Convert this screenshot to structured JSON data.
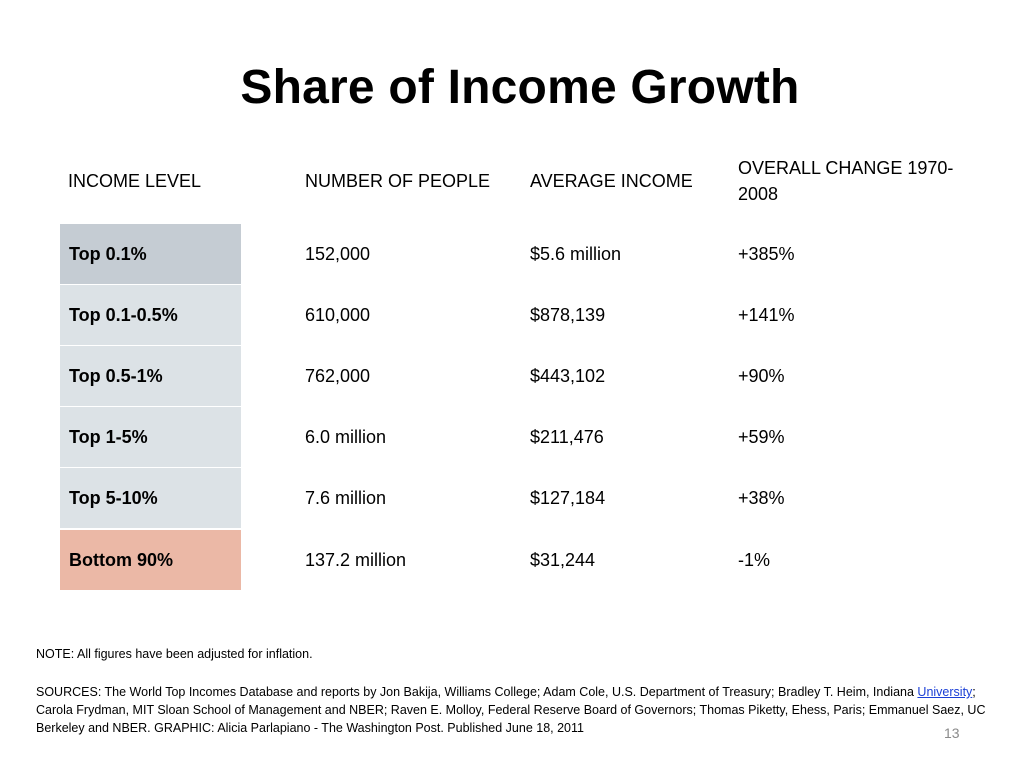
{
  "title": "Share of Income Growth",
  "headers": {
    "level": "INCOME LEVEL",
    "people": "NUMBER OF PEOPLE",
    "average": "AVERAGE INCOME",
    "change": "OVERALL CHANGE 1970-2008"
  },
  "rows": [
    {
      "level": "Top 0.1%",
      "people": "152,000",
      "average": "$5.6 million",
      "change": "+385%",
      "color": "#c5ccd3"
    },
    {
      "level": "Top 0.1-0.5%",
      "people": "610,000",
      "average": "$878,139",
      "change": "+141%",
      "color": "#dce2e6"
    },
    {
      "level": "Top 0.5-1%",
      "people": "762,000",
      "average": "$443,102",
      "change": "+90%",
      "color": "#dce2e6"
    },
    {
      "level": "Top 1-5%",
      "people": "6.0 million",
      "average": "$211,476",
      "change": "+59%",
      "color": "#dce2e6"
    },
    {
      "level": "Top 5-10%",
      "people": "7.6 million",
      "average": "$127,184",
      "change": "+38%",
      "color": "#dce2e6"
    },
    {
      "level": "Bottom 90%",
      "people": "137.2 million",
      "average": "$31,244",
      "change": "-1%",
      "color": "#ebb8a6"
    }
  ],
  "note": "NOTE: All figures have been adjusted for inflation.",
  "sources": {
    "part1": "SOURCES: The World Top Incomes Database and reports by Jon Bakija, Williams College; Adam Cole, U.S. Department of Treasury; Bradley T. Heim, Indiana ",
    "link": "University",
    "part2": "; Carola Frydman, MIT Sloan School of Management and NBER; Raven E. Molloy, Federal Reserve Board of Governors; Thomas Piketty, Ehess, Paris; Emmanuel Saez, UC Berkeley and NBER. GRAPHIC: Alicia Parlapiano - The Washington Post. Published June 18, 2011"
  },
  "page_number": "13"
}
